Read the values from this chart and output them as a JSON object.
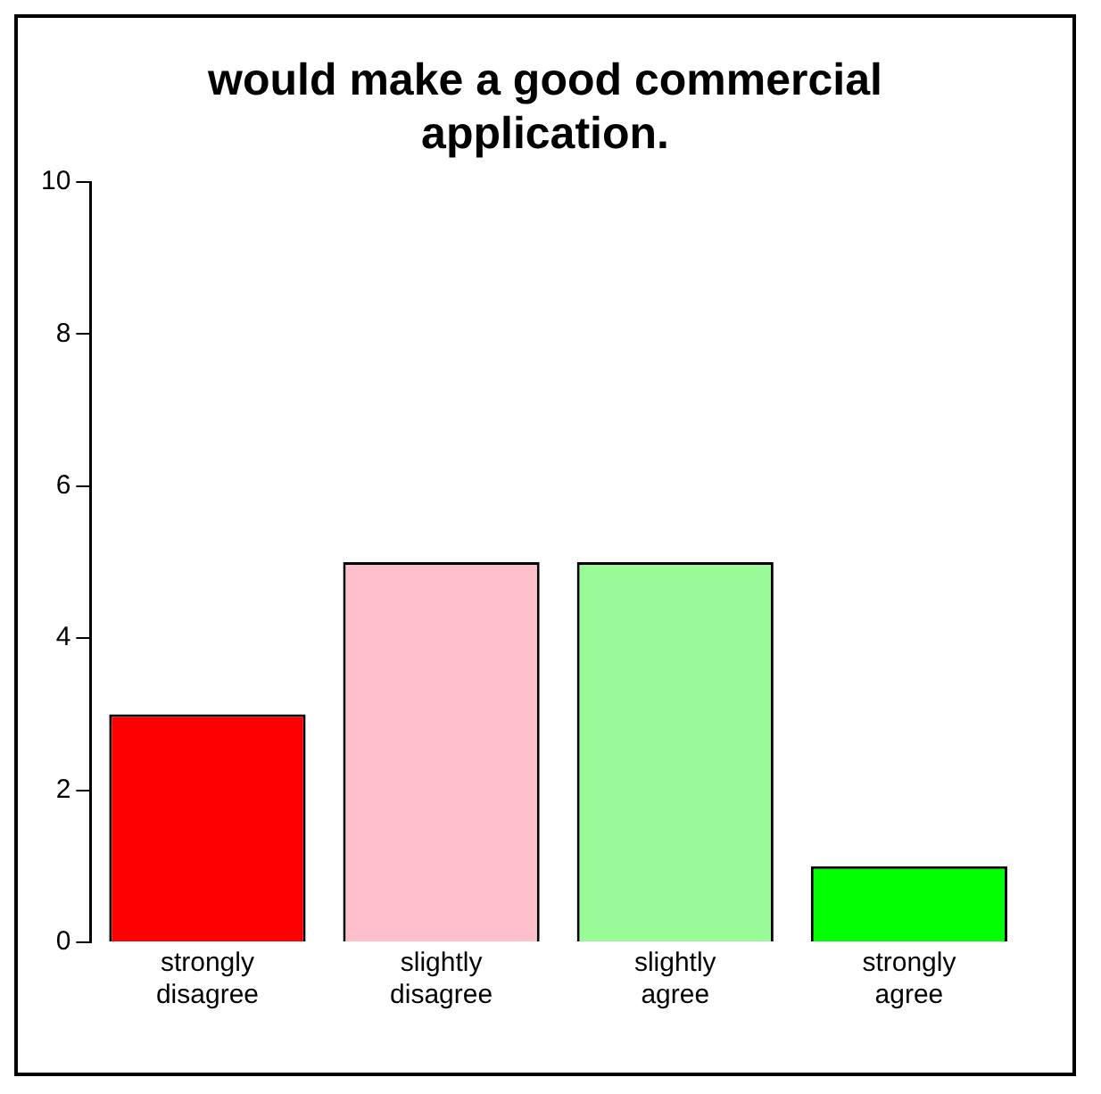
{
  "chart_data": {
    "type": "bar",
    "title": "would make a good commercial application.",
    "categories": [
      "strongly disagree",
      "slightly disagree",
      "slightly agree",
      "strongly agree"
    ],
    "values": [
      3,
      5,
      5,
      1
    ],
    "colors": [
      "#ff0000",
      "#ffc0cb",
      "#98fb98",
      "#00ff00"
    ],
    "ylim": [
      0,
      10
    ],
    "yticks": [
      0,
      2,
      4,
      6,
      8,
      10
    ],
    "grid": false,
    "legend": false
  }
}
